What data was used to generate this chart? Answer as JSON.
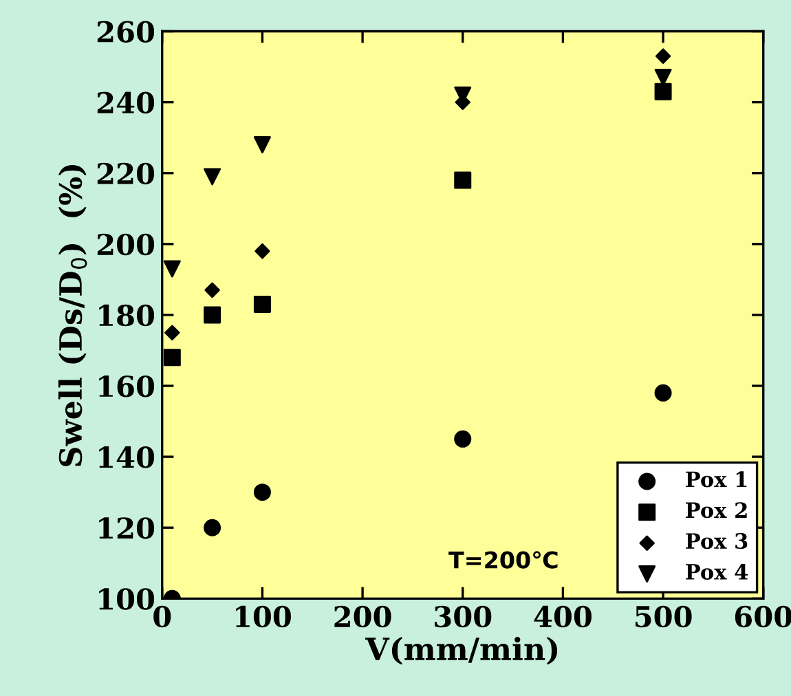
{
  "chart_data": {
    "type": "scatter",
    "xlabel": "V(mm/min)",
    "ylabel": "Swell (Ds/D$_{0}$)  (%)",
    "xlim": [
      0,
      600
    ],
    "xticks": [
      0,
      100,
      200,
      300,
      400,
      500,
      600
    ],
    "ylim": [
      100,
      260
    ],
    "yticks": [
      100,
      120,
      140,
      160,
      180,
      200,
      220,
      240,
      260
    ],
    "grid": false,
    "legend": "bottom right",
    "annotations": [
      "T=200℃"
    ],
    "series": [
      {
        "name": "Pox 1",
        "color": "#000000",
        "marker": "circle",
        "x": [
          10,
          50,
          100,
          300,
          500
        ],
        "values": [
          100,
          120,
          130,
          145,
          158
        ]
      },
      {
        "name": "Pox 2",
        "color": "#000000",
        "marker": "square",
        "x": [
          10,
          50,
          100,
          300,
          500
        ],
        "values": [
          168,
          180,
          183,
          218,
          243
        ]
      },
      {
        "name": "Pox 3",
        "color": "#000000",
        "marker": "diamond",
        "x": [
          10,
          50,
          100,
          300,
          500
        ],
        "values": [
          175,
          187,
          198,
          240,
          253
        ]
      },
      {
        "name": "Pox 4",
        "color": "#000000",
        "marker": "triangle",
        "x": [
          10,
          50,
          100,
          300,
          500
        ],
        "values": [
          193,
          219,
          228,
          242,
          247
        ]
      }
    ]
  }
}
